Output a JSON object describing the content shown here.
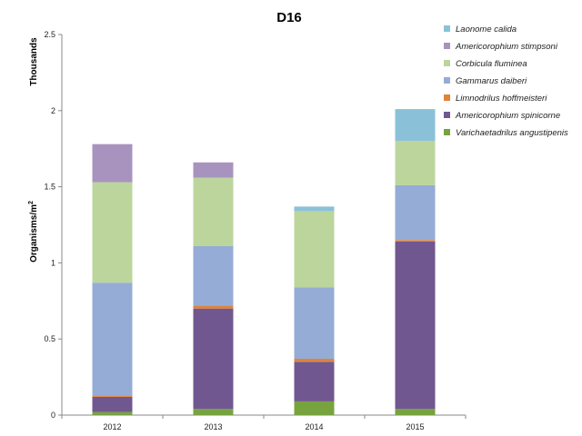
{
  "chart_data": {
    "type": "bar",
    "stacked": true,
    "title": "D16",
    "ylabel_main": "Organisms/m",
    "ylabel_sup": "2",
    "yunit": "Thousands",
    "categories": [
      "2012",
      "2013",
      "2014",
      "2015"
    ],
    "ylim": [
      0,
      2.5
    ],
    "yticks": [
      "0",
      "0.5",
      "1",
      "1.5",
      "2",
      "2.5"
    ],
    "ytick_values": [
      0,
      0.5,
      1,
      1.5,
      2,
      2.5
    ],
    "grid": false,
    "legend_position": "top-right",
    "series": [
      {
        "name": "Varichaetadrilus angustipenis",
        "color": "#77a33f",
        "values": [
          0.02,
          0.04,
          0.09,
          0.04
        ]
      },
      {
        "name": "Americorophium spinicorne",
        "color": "#71578f",
        "values": [
          0.1,
          0.66,
          0.26,
          1.1
        ]
      },
      {
        "name": "Limnodrilus hoffmeisteri",
        "color": "#e0823a",
        "values": [
          0.01,
          0.02,
          0.02,
          0.01
        ]
      },
      {
        "name": "Gammarus daiberi",
        "color": "#95acd6",
        "values": [
          0.74,
          0.39,
          0.47,
          0.36
        ]
      },
      {
        "name": "Corbicula fluminea",
        "color": "#bcd59c",
        "values": [
          0.66,
          0.45,
          0.5,
          0.29
        ]
      },
      {
        "name": "Americorophium stimpsoni",
        "color": "#a893be",
        "values": [
          0.25,
          0.1,
          0.0,
          0.0
        ]
      },
      {
        "name": "Laonome calida",
        "color": "#8bc1d8",
        "values": [
          0.0,
          0.0,
          0.03,
          0.21
        ]
      }
    ]
  }
}
